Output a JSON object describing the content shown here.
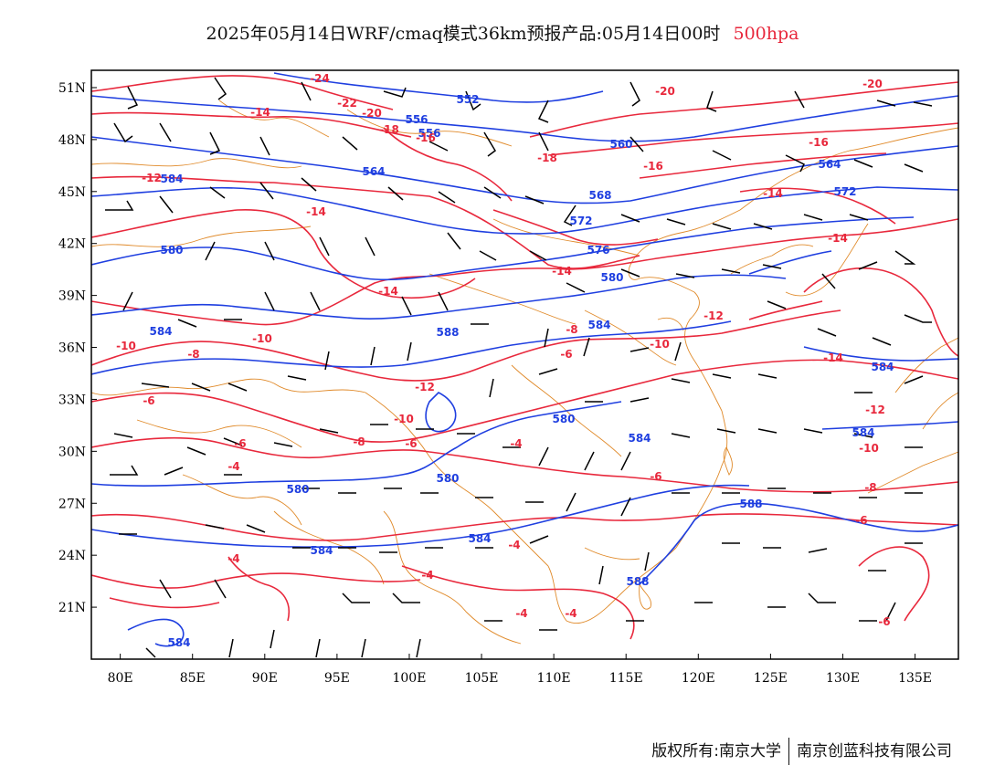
{
  "title": {
    "main": "2025年05月14日WRF/cmaq模式36km预报产品:05月14日00时",
    "level": "500hpa"
  },
  "map": {
    "type": "weather-map",
    "colors": {
      "height": "#1f3fe0",
      "temperature": "#e8283c",
      "coast": "#e08a2a",
      "wind": "#000000"
    },
    "extent": {
      "lon": [
        78,
        138
      ],
      "lat": [
        18,
        52
      ]
    },
    "lat_ticks": [
      "51N",
      "48N",
      "45N",
      "42N",
      "39N",
      "36N",
      "33N",
      "30N",
      "27N",
      "24N",
      "21N"
    ],
    "lon_ticks": [
      "80E",
      "85E",
      "90E",
      "95E",
      "100E",
      "105E",
      "110E",
      "115E",
      "120E",
      "125E",
      "130E",
      "135E"
    ],
    "height_labels": [
      "552",
      "556",
      "560",
      "564",
      "568",
      "572",
      "576",
      "580",
      "584",
      "588"
    ],
    "temperature_labels": [
      "-24",
      "-22",
      "-20",
      "-18",
      "-16",
      "-14",
      "-12",
      "-10",
      "-8",
      "-6",
      "-4"
    ]
  },
  "footer": {
    "left": "版权所有:南京大学",
    "right": "南京创蓝科技有限公司"
  }
}
